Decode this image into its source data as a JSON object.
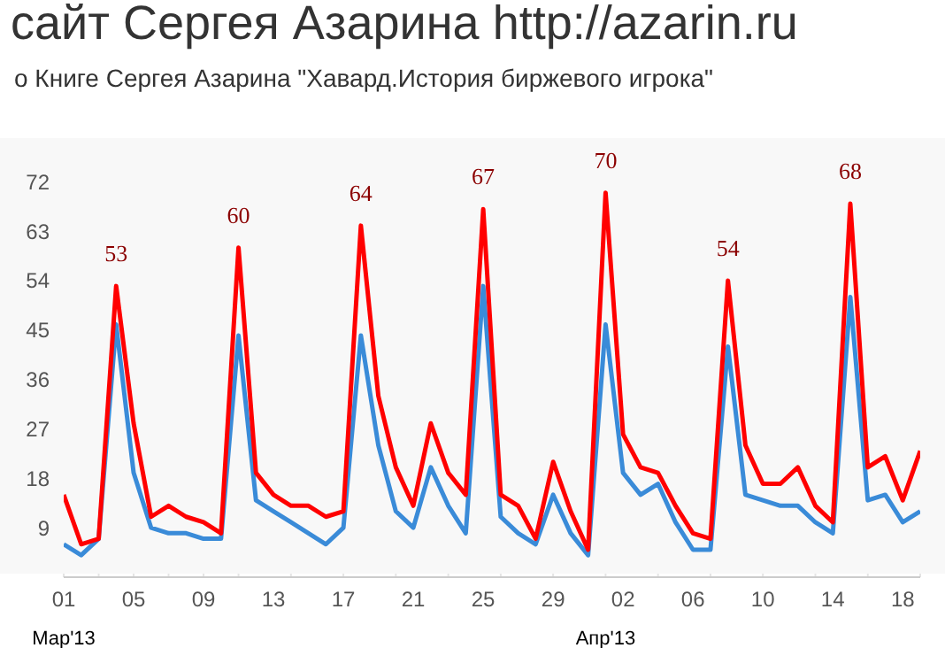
{
  "chart_data": {
    "type": "line",
    "title": "сайт Сергея Азарина http://azarin.ru",
    "subtitle": "о Книге Сергея Азарина \"Хавард.История биржевого игрока\"",
    "x": [
      "2013-03-01",
      "2013-03-02",
      "2013-03-03",
      "2013-03-04",
      "2013-03-05",
      "2013-03-06",
      "2013-03-07",
      "2013-03-08",
      "2013-03-09",
      "2013-03-10",
      "2013-03-11",
      "2013-03-12",
      "2013-03-13",
      "2013-03-14",
      "2013-03-15",
      "2013-03-16",
      "2013-03-17",
      "2013-03-18",
      "2013-03-19",
      "2013-03-20",
      "2013-03-21",
      "2013-03-22",
      "2013-03-23",
      "2013-03-24",
      "2013-03-25",
      "2013-03-26",
      "2013-03-27",
      "2013-03-28",
      "2013-03-29",
      "2013-03-30",
      "2013-03-31",
      "2013-04-01",
      "2013-04-02",
      "2013-04-03",
      "2013-04-04",
      "2013-04-05",
      "2013-04-06",
      "2013-04-07",
      "2013-04-08",
      "2013-04-09",
      "2013-04-10",
      "2013-04-11",
      "2013-04-12",
      "2013-04-13",
      "2013-04-14",
      "2013-04-15",
      "2013-04-16",
      "2013-04-17",
      "2013-04-18",
      "2013-04-19"
    ],
    "series": [
      {
        "color": "#3a8bd8",
        "values": [
          6,
          4,
          7,
          46,
          19,
          9,
          8,
          8,
          7,
          7,
          44,
          14,
          12,
          10,
          8,
          6,
          9,
          44,
          24,
          12,
          9,
          20,
          13,
          8,
          53,
          11,
          8,
          6,
          15,
          8,
          4,
          46,
          19,
          15,
          17,
          10,
          5,
          5,
          42,
          15,
          14,
          13,
          13,
          10,
          8,
          51,
          14,
          15,
          10,
          12
        ]
      },
      {
        "color": "#ff0000",
        "values": [
          15,
          6,
          7,
          53,
          28,
          11,
          13,
          11,
          10,
          8,
          60,
          19,
          15,
          13,
          13,
          11,
          12,
          64,
          33,
          20,
          13,
          28,
          19,
          15,
          67,
          15,
          13,
          7,
          21,
          12,
          5,
          70,
          26,
          20,
          19,
          13,
          8,
          7,
          54,
          24,
          17,
          17,
          20,
          13,
          10,
          68,
          20,
          22,
          14,
          23
        ],
        "value_labels": [
          null,
          null,
          null,
          "53",
          null,
          null,
          null,
          null,
          null,
          null,
          "60",
          null,
          null,
          null,
          null,
          null,
          null,
          "64",
          null,
          null,
          null,
          null,
          null,
          null,
          "67",
          null,
          null,
          null,
          null,
          null,
          null,
          "70",
          null,
          null,
          null,
          null,
          null,
          null,
          "54",
          null,
          null,
          null,
          null,
          null,
          null,
          "68",
          null,
          null,
          null,
          null
        ]
      }
    ],
    "xlim": [
      "2013-03-01",
      "2013-04-19"
    ],
    "xticks": [
      {
        "value": "2013-03-01",
        "label": "01"
      },
      {
        "value": "2013-03-05",
        "label": "05"
      },
      {
        "value": "2013-03-09",
        "label": "09"
      },
      {
        "value": "2013-03-13",
        "label": "13"
      },
      {
        "value": "2013-03-17",
        "label": "17"
      },
      {
        "value": "2013-03-21",
        "label": "21"
      },
      {
        "value": "2013-03-25",
        "label": "25"
      },
      {
        "value": "2013-03-29",
        "label": "29"
      },
      {
        "value": "2013-04-02",
        "label": "02"
      },
      {
        "value": "2013-04-06",
        "label": "06"
      },
      {
        "value": "2013-04-10",
        "label": "10"
      },
      {
        "value": "2013-04-14",
        "label": "14"
      },
      {
        "value": "2013-04-18",
        "label": "18"
      }
    ],
    "x2lim": [
      "2013-03-01",
      "2013-04-19"
    ],
    "x2ticks": [
      {
        "value": "2013-03-01",
        "label": "Мар'13"
      },
      {
        "value": "2013-04-01",
        "label": "Апр'13"
      }
    ],
    "ylim": [
      0,
      78
    ],
    "yticks": [
      9,
      18,
      27,
      36,
      45,
      54,
      63,
      72
    ],
    "grid": true,
    "legend": false,
    "marker": "none",
    "line_style": "solid"
  }
}
